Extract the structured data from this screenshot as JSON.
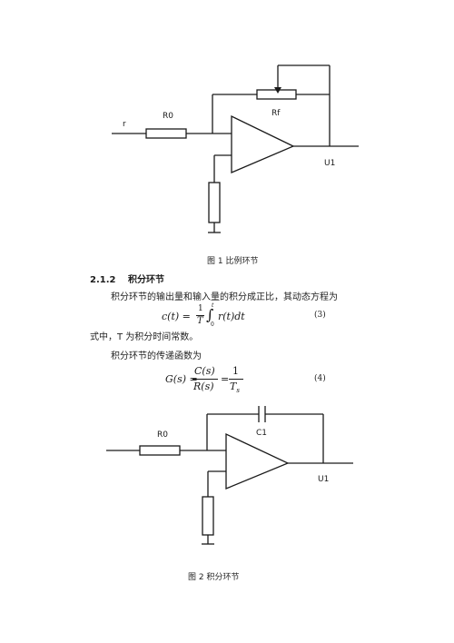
{
  "figure1": {
    "labels": {
      "input": "r",
      "resistor_in": "R0",
      "resistor_fb": "Rf",
      "amp": "U1"
    },
    "caption": "图 1 比例环节"
  },
  "section": {
    "number": "2.1.2",
    "title": "积分环节",
    "intro": "积分环节的输出量和输入量的积分成正比，其动态方程为",
    "eq3": {
      "lhs": "c(t) =",
      "frac_num": "1",
      "frac_den": "T",
      "integral_upper": "t",
      "integral_lower": "0",
      "rhs": "r(t)dt",
      "number": "(3)"
    },
    "note": "式中，T 为积分时间常数。",
    "tf_intro": "积分环节的传递函数为",
    "eq4": {
      "lhs": "G(s) =",
      "frac1_num": "C(s)",
      "frac1_den": "R(s)",
      "eq": "=",
      "frac2_num": "1",
      "frac2_den": "T",
      "frac2_den_sub": "s",
      "number": "(4)"
    }
  },
  "figure2": {
    "labels": {
      "resistor_in": "R0",
      "capacitor": "C1",
      "amp": "U1"
    },
    "caption": "图 2 积分环节"
  }
}
